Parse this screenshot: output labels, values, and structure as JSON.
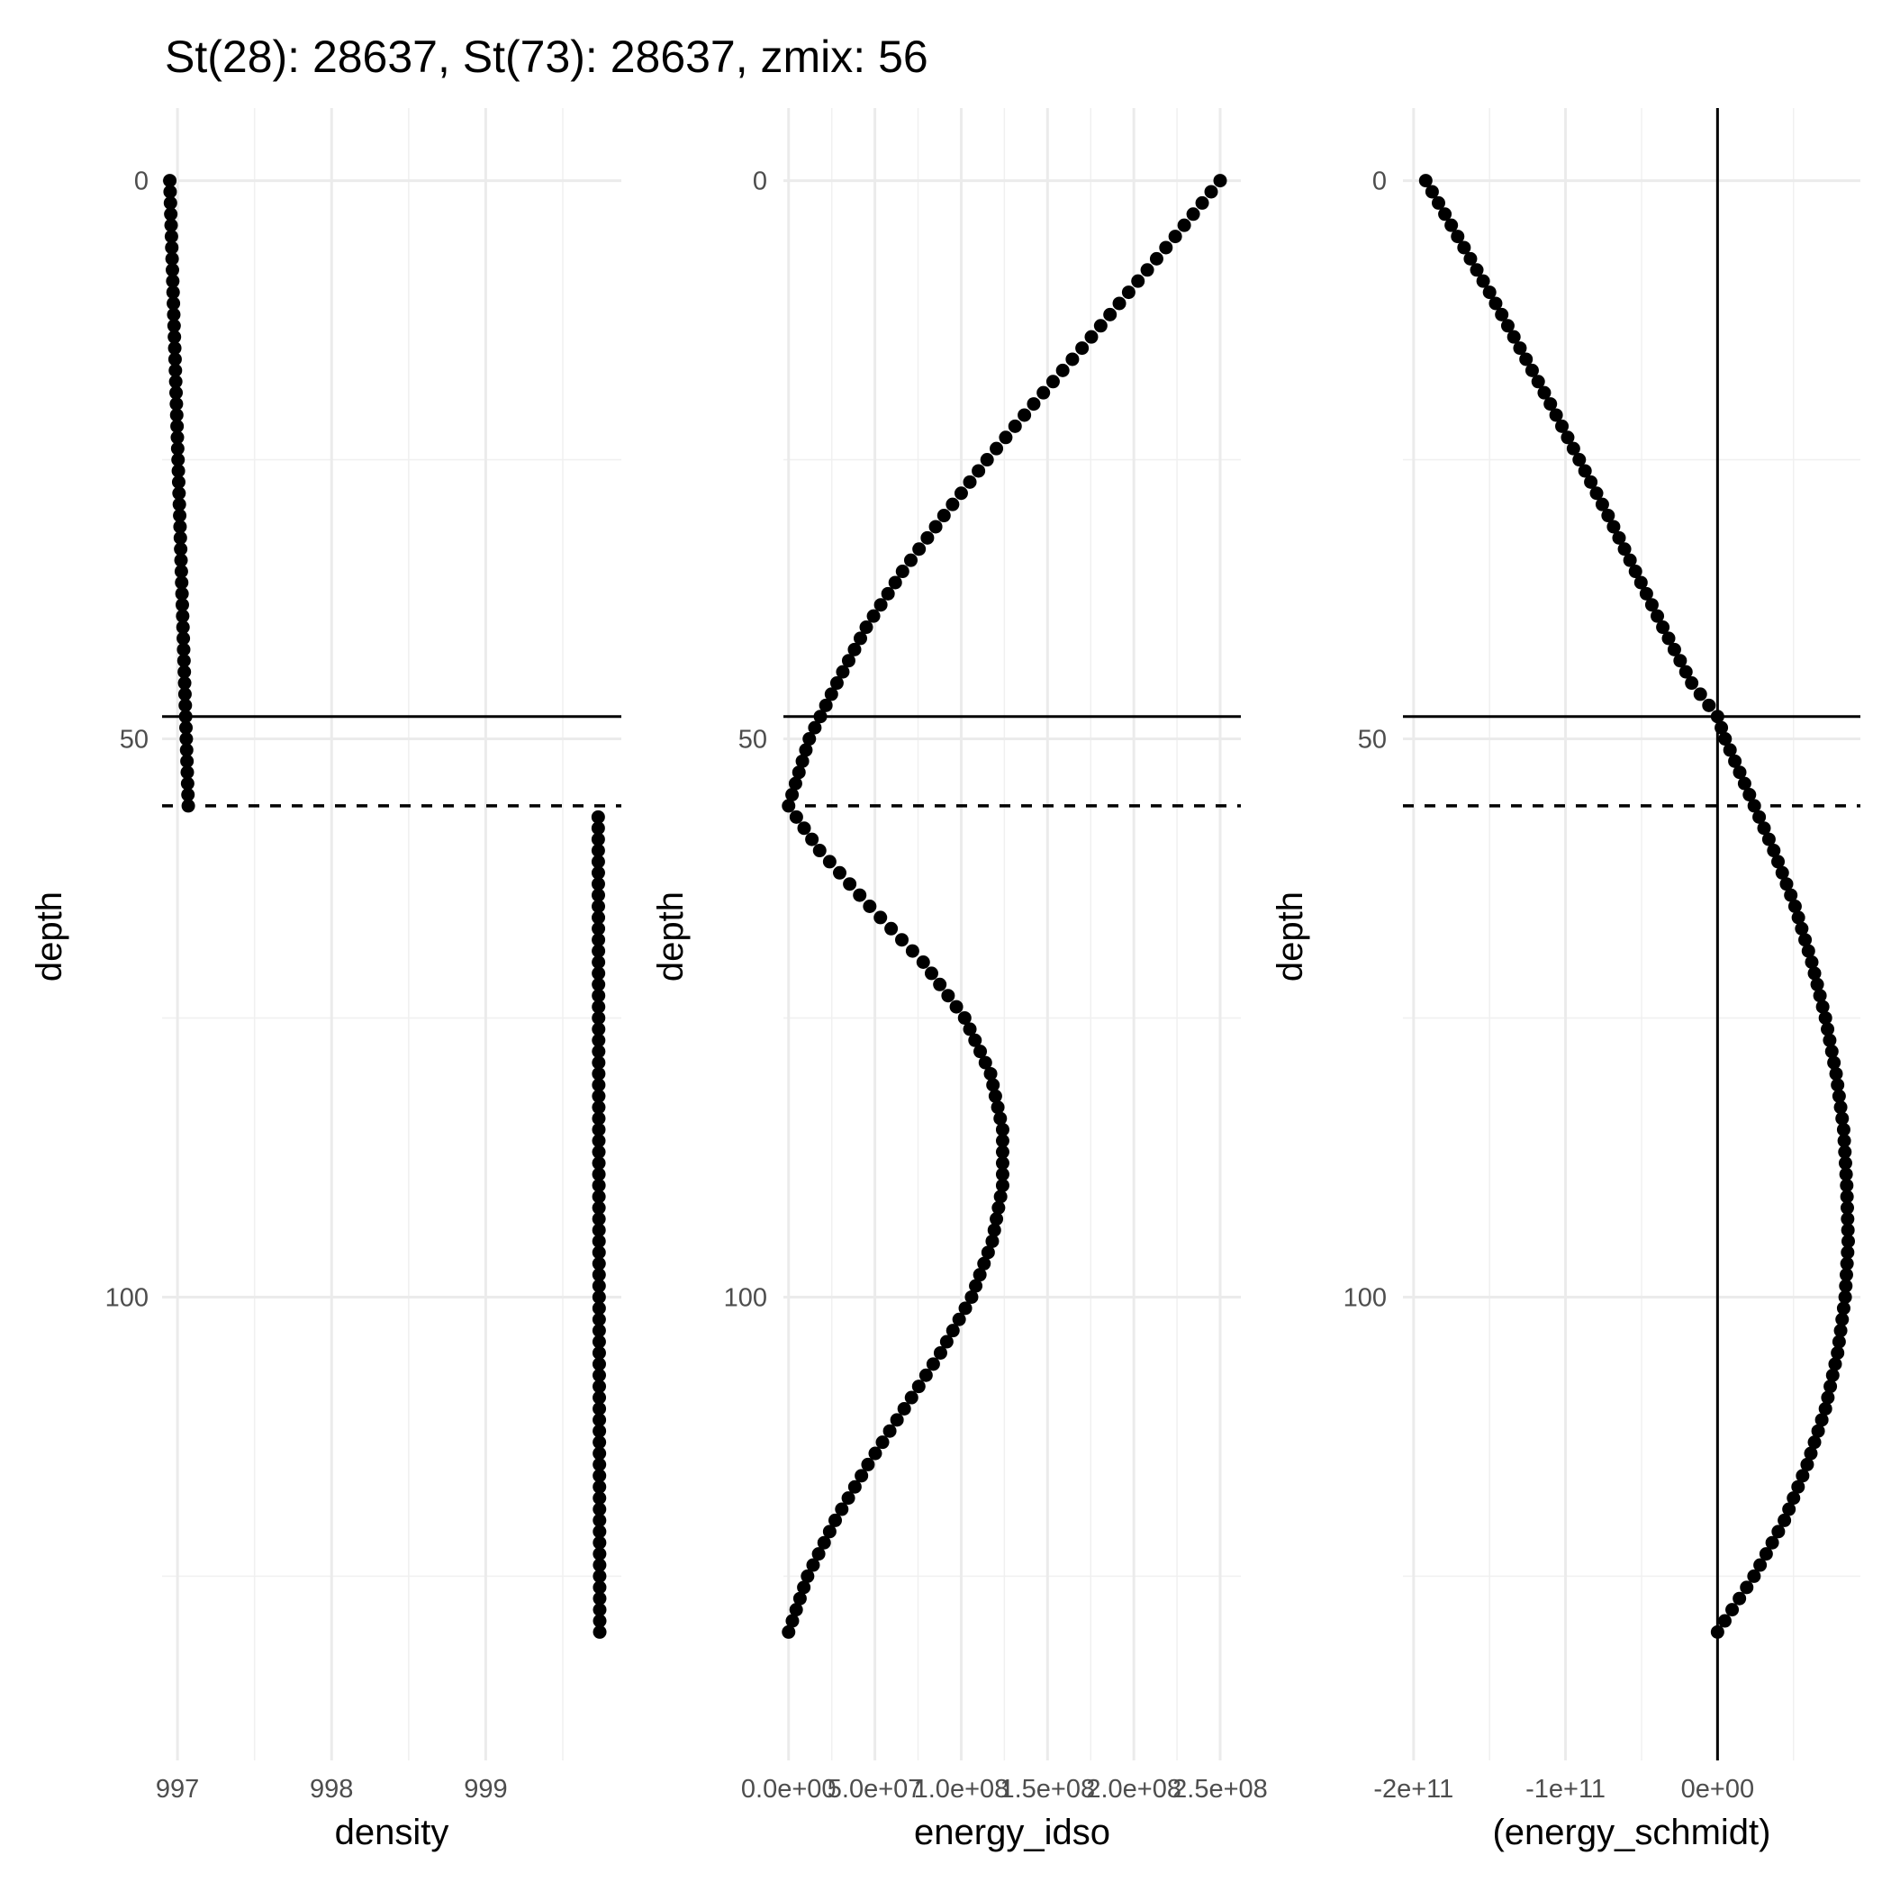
{
  "chart_data": {
    "type": "scatter",
    "title": "St(28): 28637, St(73): 28637, zmix: 56",
    "reference_lines": {
      "solid_depth": 48,
      "dashed_depth": 56
    },
    "panels": [
      {
        "name": "density",
        "xlabel": "density",
        "ylabel": "depth",
        "xlim": [
          996.9,
          999.88
        ],
        "ylim": [
          141.5,
          -6.5
        ],
        "x_ticks": [
          997,
          998,
          999
        ],
        "x_tick_labels": [
          "997",
          "998",
          "999"
        ],
        "y_ticks": [
          0,
          50,
          100
        ],
        "y_tick_labels": [
          "0",
          "50",
          "100"
        ],
        "zero_vline": false,
        "segments": [
          {
            "depth_start": 0,
            "depth_end": 56,
            "x_start": 996.95,
            "x_end": 997.07
          },
          {
            "depth_start": 57,
            "depth_end": 130,
            "x_start": 999.73,
            "x_end": 999.74
          }
        ]
      },
      {
        "name": "energy_idso",
        "xlabel": "energy_idso",
        "ylabel": "depth",
        "xlim": [
          -3000000.0,
          262000000.0
        ],
        "ylim": [
          141.5,
          -6.5
        ],
        "x_ticks": [
          0,
          50000000.0,
          100000000.0,
          150000000.0,
          200000000.0,
          250000000.0
        ],
        "x_tick_labels": [
          "0.0e+00",
          "5.0e+07",
          "1.0e+08",
          "1.5e+08",
          "2.0e+08",
          "2.5e+08"
        ],
        "y_ticks": [
          0,
          50,
          100
        ],
        "y_tick_labels": [
          "0",
          "50",
          "100"
        ],
        "zero_vline": false,
        "profile": {
          "depth": [
            0,
            5,
            10,
            15,
            20,
            25,
            30,
            35,
            40,
            45,
            50,
            56,
            60,
            65,
            70,
            75,
            80,
            85,
            90,
            95,
            100,
            105,
            110,
            115,
            120,
            125,
            130
          ],
          "value": [
            250000000.0,
            224000000.0,
            197000000.0,
            170000000.0,
            142000000.0,
            115000000.0,
            90000000.0,
            66000000.0,
            45000000.0,
            28000000.0,
            12000000.0,
            0,
            18000000.0,
            47000000.0,
            78000000.0,
            102000000.0,
            117000000.0,
            124000000.0,
            124000000.0,
            118000000.0,
            106000000.0,
            88000000.0,
            67000000.0,
            46000000.0,
            27000000.0,
            11000000.0,
            0
          ]
        }
      },
      {
        "name": "schmidt",
        "xlabel": "(energy_schmidt)",
        "ylabel": "depth",
        "xlim": [
          -207000000000.0,
          94000000000.0
        ],
        "ylim": [
          141.5,
          -6.5
        ],
        "x_ticks": [
          -200000000000.0,
          -100000000000.0,
          0
        ],
        "x_tick_labels": [
          "-2e+11",
          "-1e+11",
          "0e+00"
        ],
        "y_ticks": [
          0,
          50,
          100
        ],
        "y_tick_labels": [
          "0",
          "50",
          "100"
        ],
        "zero_vline": true,
        "profile": {
          "depth": [
            0,
            5,
            10,
            15,
            20,
            25,
            30,
            35,
            40,
            45,
            48,
            50,
            55,
            60,
            65,
            70,
            75,
            80,
            85,
            90,
            95,
            100,
            105,
            110,
            115,
            120,
            125,
            130
          ],
          "value": [
            -192000000000.0,
            -171000000000.0,
            -150000000000.0,
            -130000000000.0,
            -110000000000.0,
            -91000000000.0,
            -72000000000.0,
            -54000000000.0,
            -36000000000.0,
            -17000000000.0,
            0,
            5000000000.0,
            21000000000.0,
            37000000000.0,
            51000000000.0,
            62000000000.0,
            71000000000.0,
            78000000000.0,
            83000000000.0,
            85000000000.0,
            86000000000.0,
            84000000000.0,
            79000000000.0,
            71000000000.0,
            59000000000.0,
            44000000000.0,
            24000000000.0,
            0
          ]
        }
      }
    ]
  }
}
